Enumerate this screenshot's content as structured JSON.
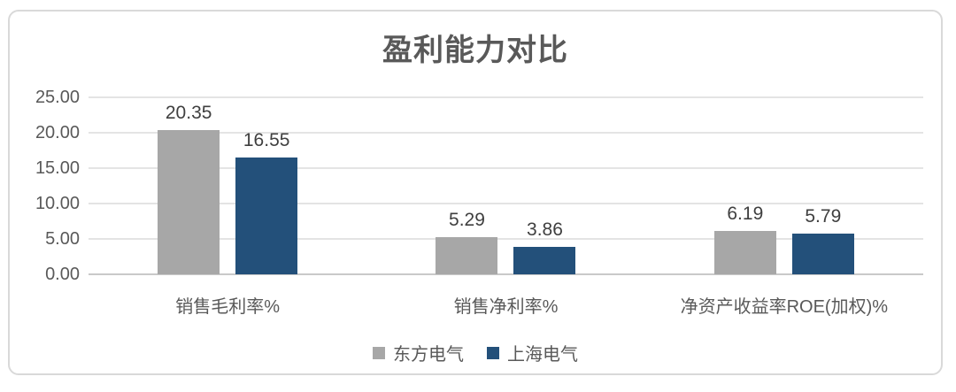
{
  "chart_data": {
    "type": "bar",
    "title": "盈利能力对比",
    "categories": [
      "销售毛利率%",
      "销售净利率%",
      "净资产收益率ROE(加权)%"
    ],
    "series": [
      {
        "name": "东方电气",
        "color": "#A7A7A7",
        "values": [
          20.35,
          5.29,
          6.19
        ]
      },
      {
        "name": "上海电气",
        "color": "#23507A",
        "values": [
          16.55,
          3.86,
          5.79
        ]
      }
    ],
    "value_labels": [
      [
        "20.35",
        "16.55"
      ],
      [
        "5.29",
        "3.86"
      ],
      [
        "6.19",
        "5.79"
      ]
    ],
    "ylabel": "",
    "xlabel": "",
    "ylim": [
      0,
      25
    ],
    "ytick_step": 5,
    "yticks": [
      "0.00",
      "5.00",
      "10.00",
      "15.00",
      "20.00",
      "25.00"
    ],
    "grid": true,
    "legend_position": "bottom"
  }
}
